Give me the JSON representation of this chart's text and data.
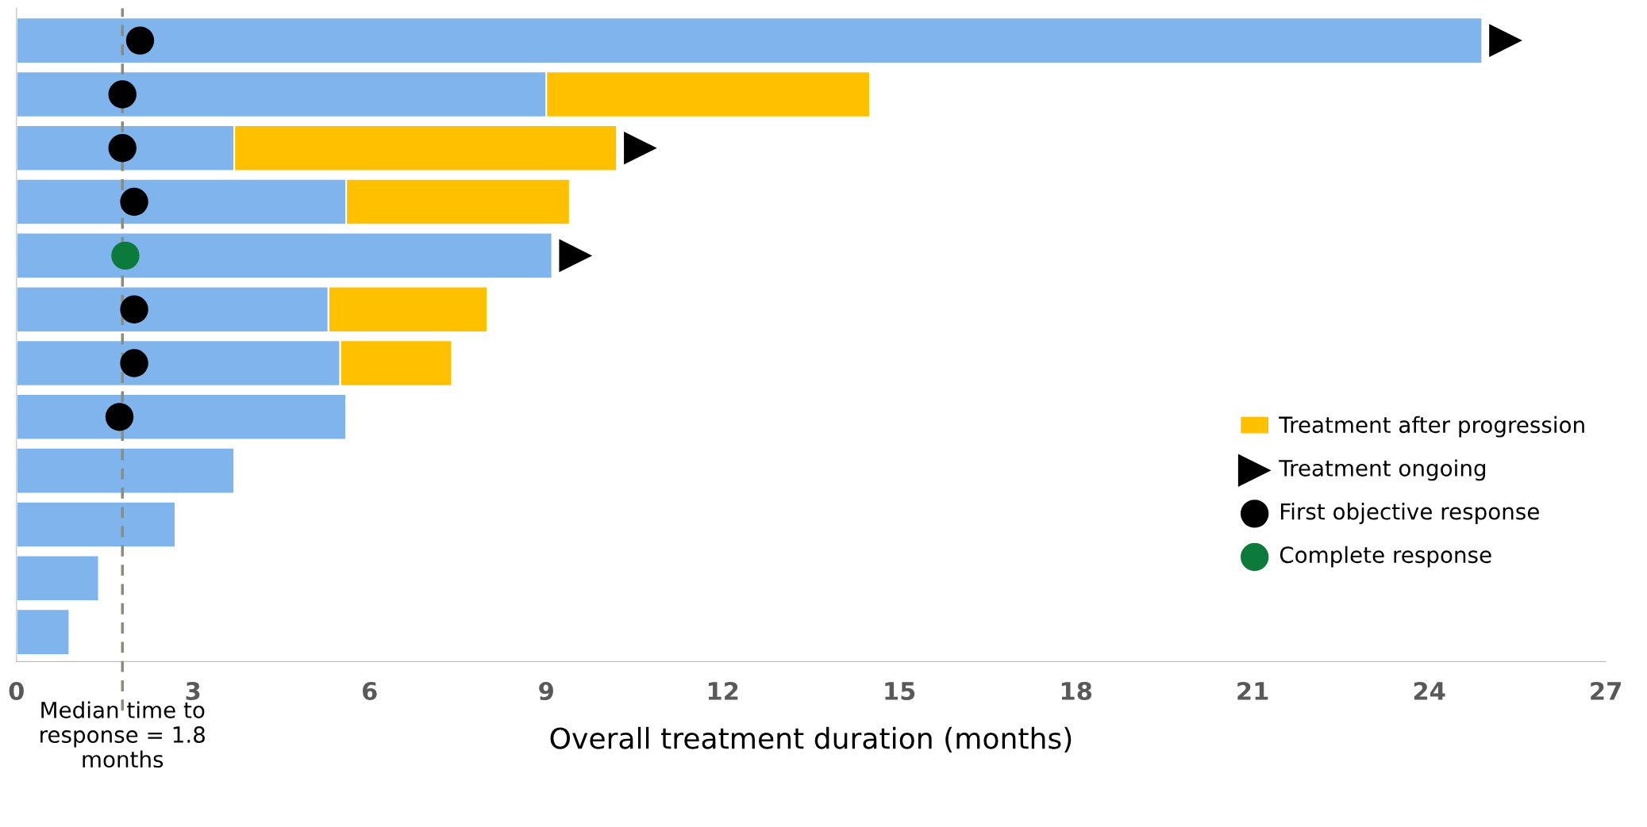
{
  "chart_data": {
    "type": "bar",
    "orientation": "horizontal",
    "stacked": true,
    "xlabel": "Overall treatment duration (months)",
    "categories": [
      null,
      null,
      null,
      null,
      null,
      null,
      null,
      null,
      null,
      null,
      null,
      null
    ],
    "series": [
      {
        "color": "#7fb4ec",
        "values": [
          24.9,
          9.0,
          3.7,
          5.6,
          9.1,
          5.3,
          5.5,
          5.6,
          3.7,
          2.7,
          1.4,
          0.9
        ]
      },
      {
        "name": "Treatment after progression",
        "color": "#ffc000",
        "values": [
          null,
          5.5,
          6.5,
          3.8,
          null,
          2.7,
          1.9,
          null,
          null,
          null,
          null,
          null
        ]
      },
      {
        "type": "scatter",
        "name": "Treatment ongoing",
        "color": "#000000",
        "marker": "triangle",
        "values": [
          25.3,
          null,
          10.6,
          null,
          9.5,
          null,
          null,
          null,
          null,
          null,
          null,
          null
        ]
      },
      {
        "type": "scatter",
        "name": "First objective response",
        "color": "#000000",
        "marker": "circle",
        "values": [
          2.1,
          1.8,
          1.8,
          2.0,
          null,
          2.0,
          2.0,
          1.75,
          null,
          null,
          null,
          null
        ]
      },
      {
        "type": "scatter",
        "name": "Complete response",
        "color": "#0b7a3a",
        "marker": "circle",
        "values": [
          null,
          null,
          null,
          null,
          1.85,
          null,
          null,
          null,
          null,
          null,
          null,
          null
        ]
      }
    ],
    "xlim": [
      0,
      27
    ],
    "xticks": [
      0,
      3,
      6,
      9,
      12,
      15,
      18,
      21,
      24,
      27
    ],
    "ref_lines": [
      {
        "axis": "x",
        "value": 1.8,
        "label": "Median time to\nresponse = 1.8\nmonths",
        "color": "#8c8c7a",
        "line_style": "dashed"
      }
    ],
    "legend": "right",
    "grid": false,
    "tick_labels": "x"
  }
}
